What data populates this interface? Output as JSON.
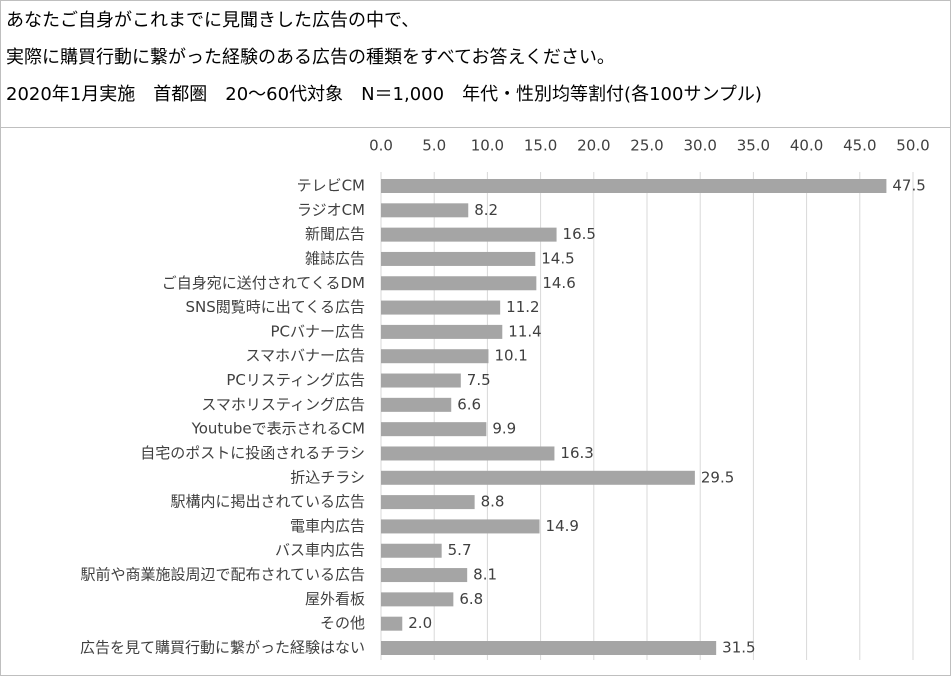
{
  "chart_data": {
    "type": "barh",
    "title": [
      "あなたご自身がこれまでに見聞きした広告の中で、",
      "実際に購買行動に繋がった経験のある広告の種類をすべてお答えください。",
      "2020年1月実施　首都圏　20～60代対象　N＝1,000　年代・性別均等割付(各100サンプル)"
    ],
    "categories": [
      "テレビCM",
      "ラジオCM",
      "新聞広告",
      "雑誌広告",
      "ご自身宛に送付されてくるDM",
      "SNS閲覧時に出てくる広告",
      "PCバナー広告",
      "スマホバナー広告",
      "PCリスティング広告",
      "スマホリスティング広告",
      "Youtubeで表示されるCM",
      "自宅のポストに投函されるチラシ",
      "折込チラシ",
      "駅構内に掲出されている広告",
      "電車内広告",
      "バス車内広告",
      "駅前や商業施設周辺で配布されている広告",
      "屋外看板",
      "その他",
      "広告を見て購買行動に繋がった経験はない"
    ],
    "values": [
      47.5,
      8.2,
      16.5,
      14.5,
      14.6,
      11.2,
      11.4,
      10.1,
      7.5,
      6.6,
      9.9,
      16.3,
      29.5,
      8.8,
      14.9,
      5.7,
      8.1,
      6.8,
      2.0,
      31.5
    ],
    "value_labels": [
      "47.5",
      "8.2",
      "16.5",
      "14.5",
      "14.6",
      "11.2",
      "11.4",
      "10.1",
      "7.5",
      "6.6",
      "9.9",
      "16.3",
      "29.5",
      "8.8",
      "14.9",
      "5.7",
      "8.1",
      "6.8",
      "2.0",
      "31.5"
    ],
    "color": "#a5a5a5",
    "xlim": [
      0,
      50
    ],
    "xticks": [
      {
        "value": 0,
        "label": "0.0"
      },
      {
        "value": 5,
        "label": "5.0"
      },
      {
        "value": 10,
        "label": "10.0"
      },
      {
        "value": 15,
        "label": "15.0"
      },
      {
        "value": 20,
        "label": "20.0"
      },
      {
        "value": 25,
        "label": "25.0"
      },
      {
        "value": 30,
        "label": "30.0"
      },
      {
        "value": 35,
        "label": "35.0"
      },
      {
        "value": 40,
        "label": "40.0"
      },
      {
        "value": 45,
        "label": "45.0"
      },
      {
        "value": 50,
        "label": "50.0"
      }
    ],
    "grid": true
  }
}
